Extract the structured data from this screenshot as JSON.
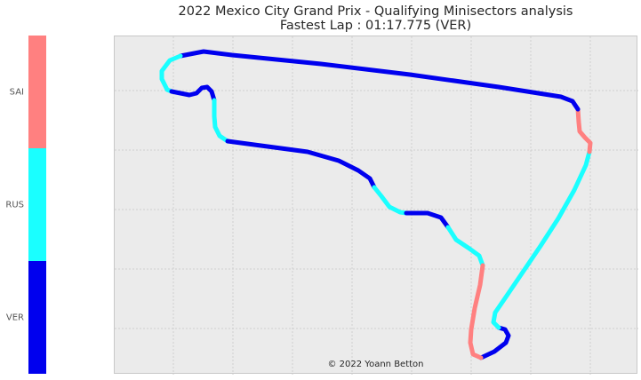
{
  "title_line1": "2022 Mexico City Grand Prix - Qualifying Minisectors analysis",
  "title_line2": "Fastest Lap : 01:17.775 (VER)",
  "credit": "© 2022 Yoann Betton",
  "chart_data": {
    "type": "line",
    "description_of_marks": "track outline colored by fastest driver per minisector",
    "legend": [
      {
        "driver": "SAI",
        "color": "#ff8080"
      },
      {
        "driver": "RUS",
        "color": "#1affff"
      },
      {
        "driver": "VER",
        "color": "#0000ee"
      }
    ],
    "grid": true,
    "minisectors": [
      {
        "driver": "VER",
        "points": [
          [
            540,
            402
          ],
          [
            555,
            395
          ],
          [
            568,
            385
          ],
          [
            571,
            377
          ],
          [
            567,
            370
          ],
          [
            560,
            368
          ]
        ]
      },
      {
        "driver": "RUS",
        "points": [
          [
            560,
            368
          ],
          [
            554,
            362
          ],
          [
            556,
            351
          ],
          [
            567,
            335
          ],
          [
            586,
            307
          ],
          [
            607,
            276
          ],
          [
            627,
            245
          ],
          [
            645,
            213
          ],
          [
            658,
            185
          ],
          [
            662,
            170
          ]
        ]
      },
      {
        "driver": "SAI",
        "points": [
          [
            662,
            170
          ],
          [
            663,
            160
          ],
          [
            657,
            154
          ],
          [
            651,
            147
          ],
          [
            650,
            137
          ],
          [
            649,
            122
          ]
        ]
      },
      {
        "driver": "VER",
        "points": [
          [
            649,
            122
          ],
          [
            643,
            113
          ],
          [
            630,
            108
          ],
          [
            560,
            97
          ],
          [
            460,
            83
          ],
          [
            360,
            71
          ],
          [
            260,
            61
          ],
          [
            228,
            57
          ],
          [
            202,
            62
          ]
        ]
      },
      {
        "driver": "RUS",
        "points": [
          [
            202,
            62
          ],
          [
            190,
            67
          ],
          [
            181,
            79
          ],
          [
            181,
            88
          ],
          [
            187,
            100
          ],
          [
            192,
            102
          ]
        ]
      },
      {
        "driver": "VER",
        "points": [
          [
            192,
            102
          ],
          [
            202,
            104
          ],
          [
            212,
            106
          ],
          [
            220,
            104
          ],
          [
            226,
            98
          ],
          [
            232,
            97
          ],
          [
            237,
            102
          ],
          [
            240,
            112
          ]
        ]
      },
      {
        "driver": "RUS",
        "points": [
          [
            240,
            112
          ],
          [
            240,
            130
          ],
          [
            241,
            142
          ],
          [
            246,
            152
          ],
          [
            255,
            158
          ]
        ]
      },
      {
        "driver": "VER",
        "points": [
          [
            255,
            158
          ],
          [
            300,
            164
          ],
          [
            345,
            170
          ],
          [
            380,
            180
          ],
          [
            402,
            191
          ],
          [
            415,
            200
          ],
          [
            420,
            210
          ]
        ]
      },
      {
        "driver": "RUS",
        "points": [
          [
            420,
            210
          ],
          [
            428,
            220
          ],
          [
            437,
            232
          ],
          [
            449,
            238
          ],
          [
            456,
            239
          ]
        ]
      },
      {
        "driver": "VER",
        "points": [
          [
            456,
            239
          ],
          [
            480,
            239
          ],
          [
            495,
            244
          ],
          [
            503,
            255
          ]
        ]
      },
      {
        "driver": "RUS",
        "points": [
          [
            503,
            255
          ],
          [
            512,
            269
          ],
          [
            527,
            279
          ],
          [
            538,
            287
          ],
          [
            542,
            298
          ]
        ]
      },
      {
        "driver": "SAI",
        "points": [
          [
            542,
            298
          ],
          [
            539,
            320
          ],
          [
            533,
            346
          ],
          [
            529,
            370
          ],
          [
            528,
            385
          ],
          [
            531,
            398
          ],
          [
            540,
            402
          ]
        ]
      }
    ]
  }
}
